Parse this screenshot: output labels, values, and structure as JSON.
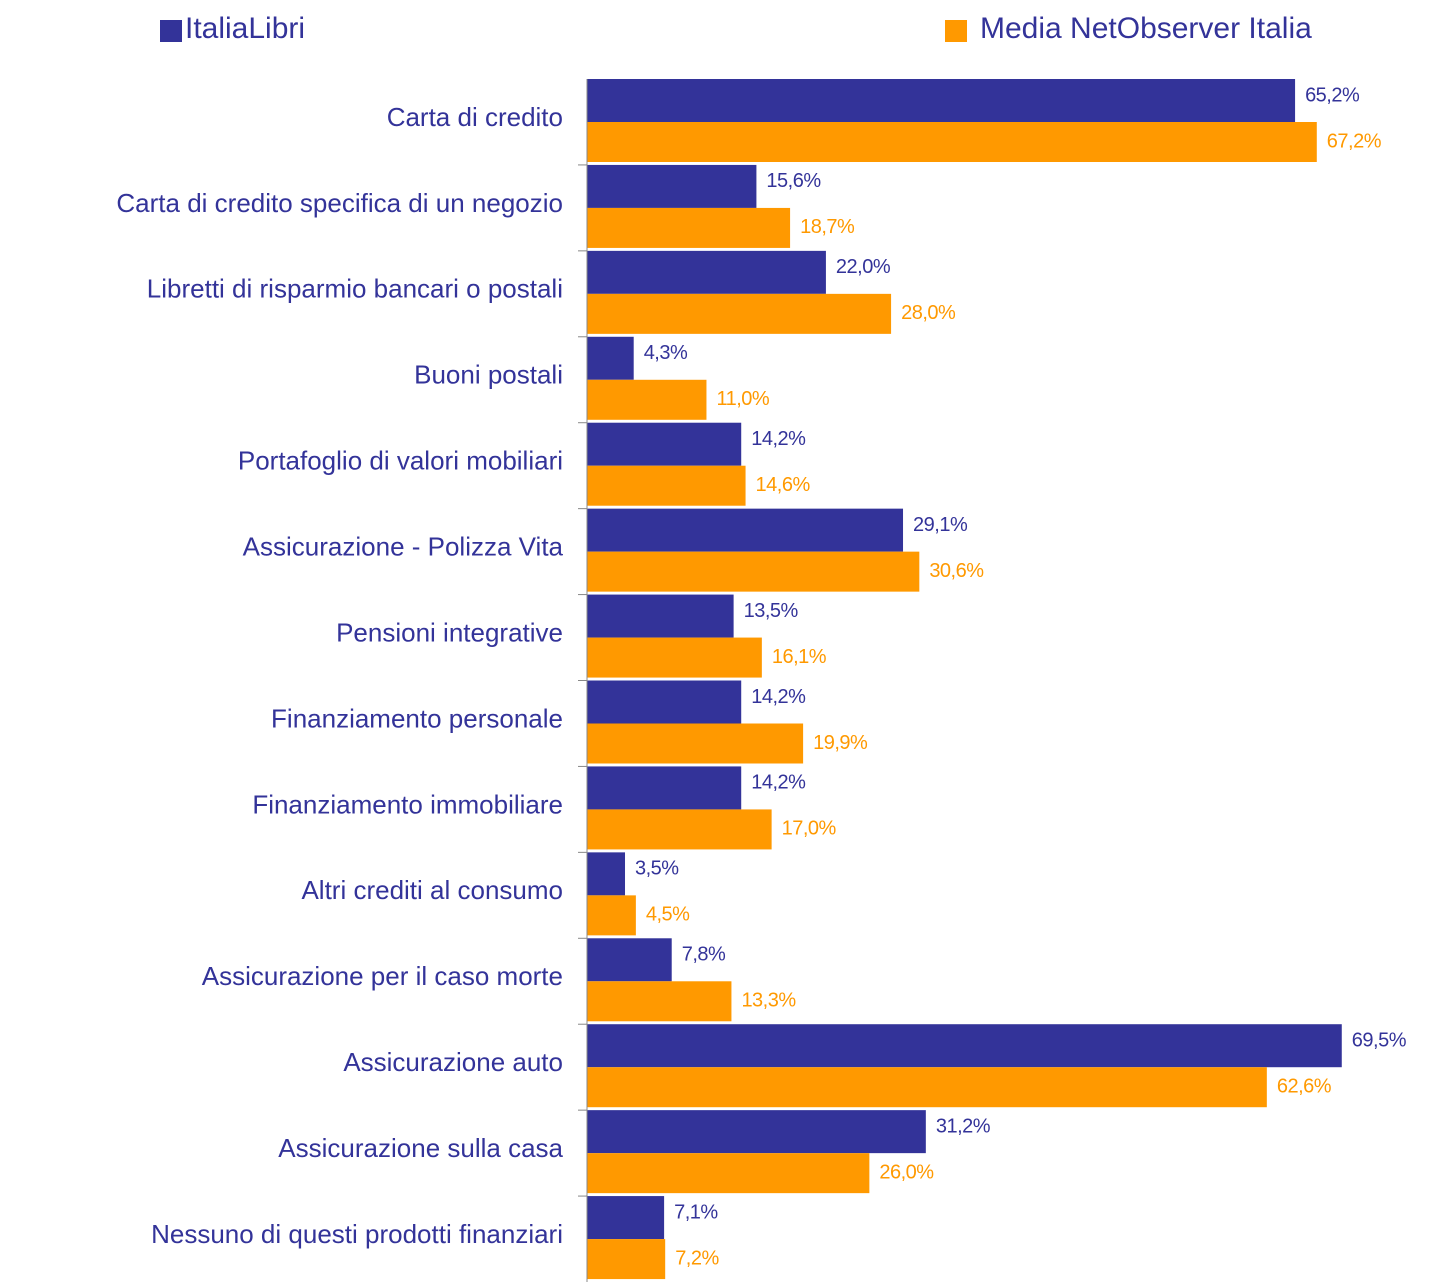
{
  "chart_data": {
    "type": "bar",
    "orientation": "horizontal",
    "categories": [
      "Carta di credito",
      "Carta di credito specifica di un negozio",
      "Libretti di risparmio bancari o postali",
      "Buoni postali",
      "Portafoglio di valori mobiliari",
      "Assicurazione - Polizza Vita",
      "Pensioni integrative",
      "Finanziamento personale",
      "Finanziamento immobiliare",
      "Altri crediti al consumo",
      "Assicurazione per il caso morte",
      "Assicurazione auto",
      "Assicurazione sulla casa",
      "Nessuno di questi prodotti finanziari"
    ],
    "series": [
      {
        "name": "ItaliaLibri",
        "color": "#333399",
        "values": [
          65.2,
          15.6,
          22.0,
          4.3,
          14.2,
          29.1,
          13.5,
          14.2,
          14.2,
          3.5,
          7.8,
          69.5,
          31.2,
          7.1
        ],
        "value_labels": [
          "65,2%",
          "15,6%",
          "22,0%",
          "4,3%",
          "14,2%",
          "29,1%",
          "13,5%",
          "14,2%",
          "14,2%",
          "3,5%",
          "7,8%",
          "69,5%",
          "31,2%",
          "7,1%"
        ]
      },
      {
        "name": "Media NetObserver Italia",
        "color": "#ff9900",
        "values": [
          67.2,
          18.7,
          28.0,
          11.0,
          14.6,
          30.6,
          16.1,
          19.9,
          17.0,
          4.5,
          13.3,
          62.6,
          26.0,
          7.2
        ],
        "value_labels": [
          "67,2%",
          "18,7%",
          "28,0%",
          "11,0%",
          "14,6%",
          "30,6%",
          "16,1%",
          "19,9%",
          "17,0%",
          "4,5%",
          "13,3%",
          "62,6%",
          "26,0%",
          "7,2%"
        ]
      }
    ]
  }
}
